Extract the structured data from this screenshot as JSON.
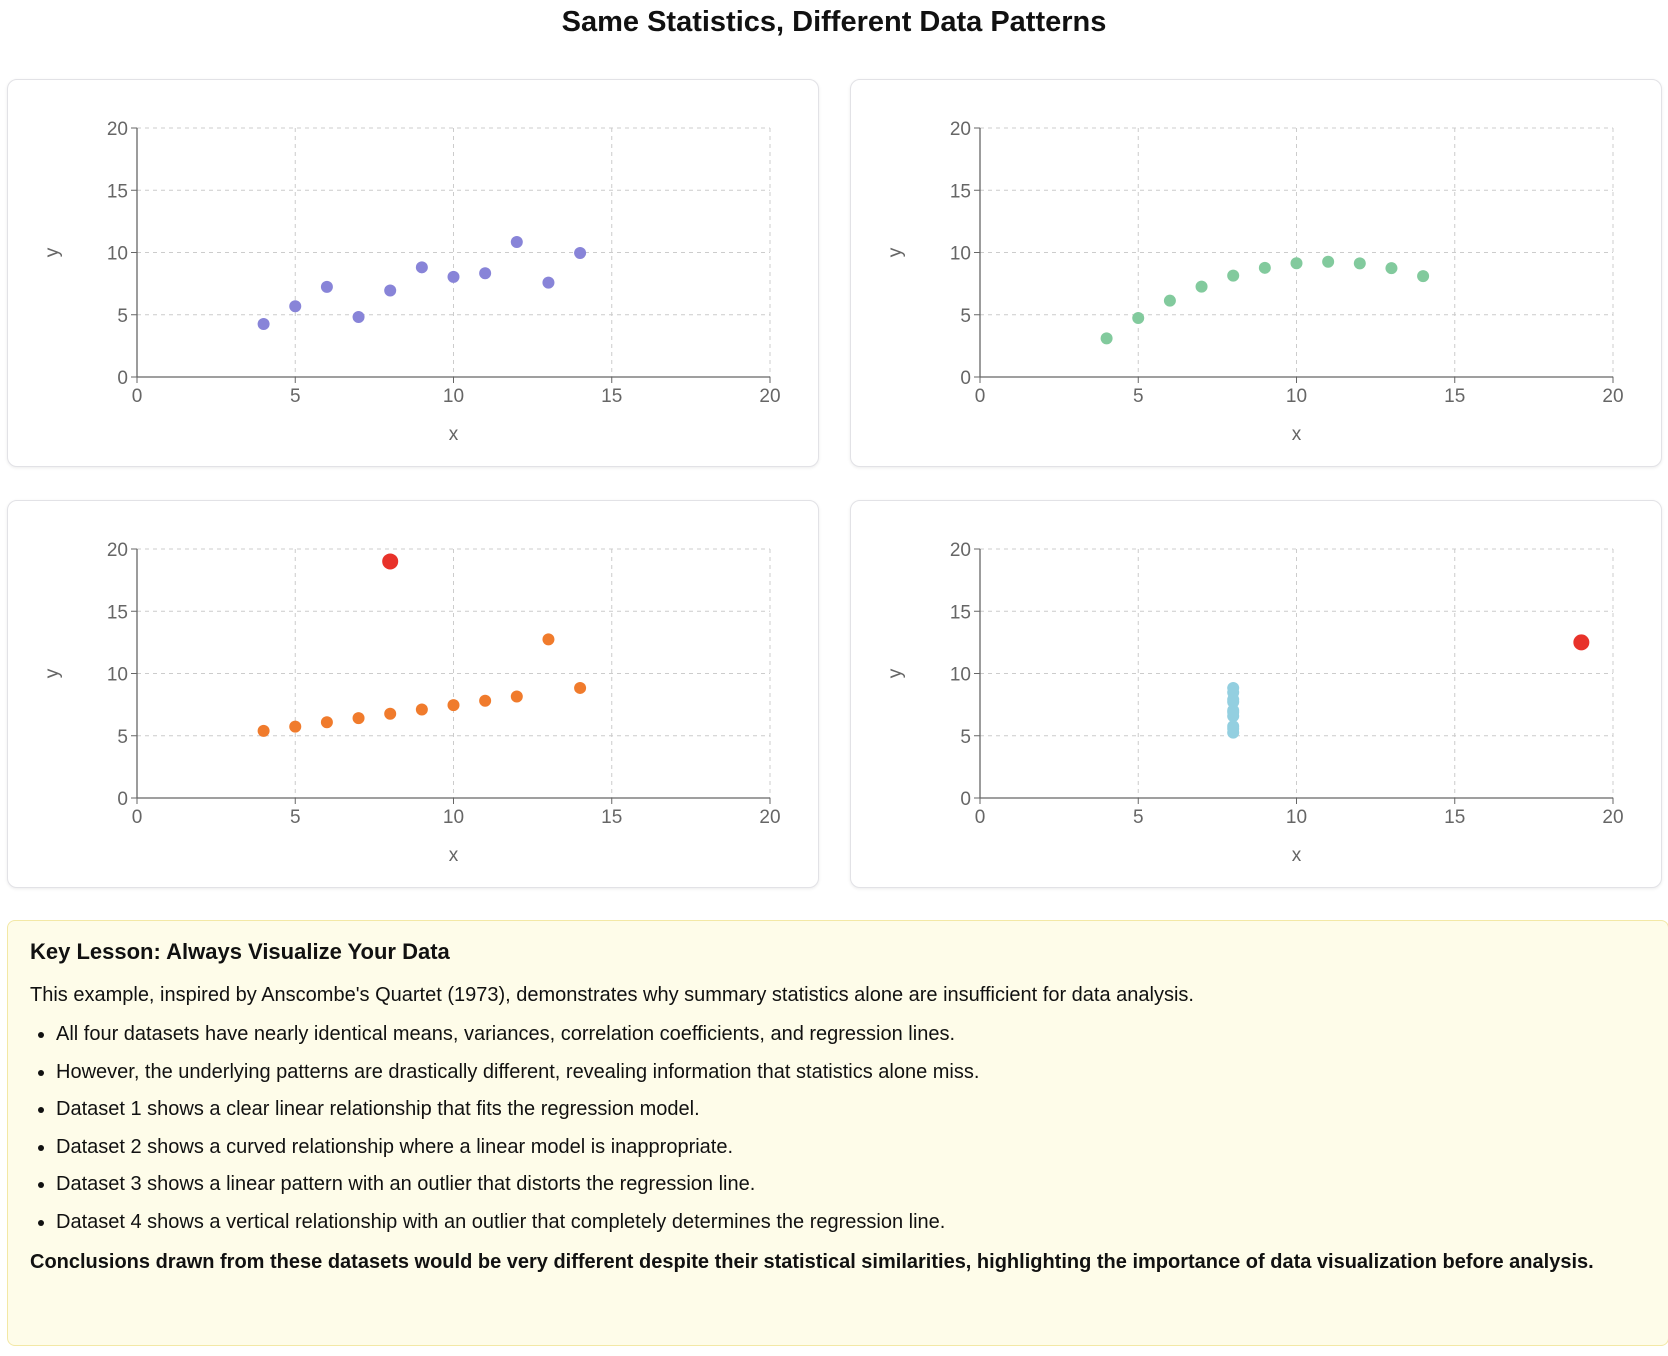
{
  "title": "Same Statistics, Different Data Patterns",
  "colors": {
    "dataset1": "#8884d8",
    "dataset2": "#82ca9d",
    "dataset3": "#f07b2c",
    "dataset4": "#93cfe0",
    "outlier": "#e8322a",
    "grid": "#cccccc",
    "axis": "#666666"
  },
  "chart_data": [
    {
      "type": "scatter",
      "xlabel": "x",
      "ylabel": "y",
      "xlim": [
        0,
        20
      ],
      "ylim": [
        0,
        20
      ],
      "xticks": [
        "0",
        "5",
        "10",
        "15",
        "20"
      ],
      "yticks": [
        "0",
        "5",
        "10",
        "15",
        "20"
      ],
      "grid": true,
      "color": "#8884d8",
      "points": [
        [
          10,
          8.04
        ],
        [
          8,
          6.95
        ],
        [
          13,
          7.58
        ],
        [
          9,
          8.81
        ],
        [
          11,
          8.33
        ],
        [
          14,
          9.96
        ],
        [
          6,
          7.24
        ],
        [
          4,
          4.26
        ],
        [
          12,
          10.84
        ],
        [
          7,
          4.82
        ],
        [
          5,
          5.68
        ]
      ],
      "highlight": []
    },
    {
      "type": "scatter",
      "xlabel": "x",
      "ylabel": "y",
      "xlim": [
        0,
        20
      ],
      "ylim": [
        0,
        20
      ],
      "xticks": [
        "0",
        "5",
        "10",
        "15",
        "20"
      ],
      "yticks": [
        "0",
        "5",
        "10",
        "15",
        "20"
      ],
      "grid": true,
      "color": "#82ca9d",
      "points": [
        [
          10,
          9.14
        ],
        [
          8,
          8.14
        ],
        [
          13,
          8.74
        ],
        [
          9,
          8.77
        ],
        [
          11,
          9.26
        ],
        [
          14,
          8.1
        ],
        [
          6,
          6.13
        ],
        [
          4,
          3.1
        ],
        [
          12,
          9.13
        ],
        [
          7,
          7.26
        ],
        [
          5,
          4.74
        ]
      ],
      "highlight": []
    },
    {
      "type": "scatter",
      "xlabel": "x",
      "ylabel": "y",
      "xlim": [
        0,
        20
      ],
      "ylim": [
        0,
        20
      ],
      "xticks": [
        "0",
        "5",
        "10",
        "15",
        "20"
      ],
      "yticks": [
        "0",
        "5",
        "10",
        "15",
        "20"
      ],
      "grid": true,
      "color": "#f07b2c",
      "points": [
        [
          10,
          7.46
        ],
        [
          8,
          6.77
        ],
        [
          13,
          12.74
        ],
        [
          9,
          7.11
        ],
        [
          11,
          7.81
        ],
        [
          14,
          8.84
        ],
        [
          6,
          6.08
        ],
        [
          4,
          5.39
        ],
        [
          12,
          8.15
        ],
        [
          7,
          6.42
        ],
        [
          5,
          5.73
        ]
      ],
      "highlight": [
        [
          8,
          19
        ]
      ]
    },
    {
      "type": "scatter",
      "xlabel": "x",
      "ylabel": "y",
      "xlim": [
        0,
        20
      ],
      "ylim": [
        0,
        20
      ],
      "xticks": [
        "0",
        "5",
        "10",
        "15",
        "20"
      ],
      "yticks": [
        "0",
        "5",
        "10",
        "15",
        "20"
      ],
      "grid": true,
      "color": "#93cfe0",
      "points": [
        [
          8,
          6.58
        ],
        [
          8,
          5.76
        ],
        [
          8,
          7.71
        ],
        [
          8,
          8.84
        ],
        [
          8,
          8.47
        ],
        [
          8,
          7.04
        ],
        [
          8,
          5.25
        ],
        [
          8,
          5.56
        ],
        [
          8,
          7.91
        ],
        [
          8,
          6.89
        ]
      ],
      "highlight": [
        [
          19,
          12.5
        ]
      ]
    }
  ],
  "lesson": {
    "heading": "Key Lesson: Always Visualize Your Data",
    "intro": "This example, inspired by Anscombe's Quartet (1973), demonstrates why summary statistics alone are insufficient for data analysis.",
    "bullets": [
      "All four datasets have nearly identical means, variances, correlation coefficients, and regression lines.",
      "However, the underlying patterns are drastically different, revealing information that statistics alone miss.",
      "Dataset 1 shows a clear linear relationship that fits the regression model.",
      "Dataset 2 shows a curved relationship where a linear model is inappropriate.",
      "Dataset 3 shows a linear pattern with an outlier that distorts the regression line.",
      "Dataset 4 shows a vertical relationship with an outlier that completely determines the regression line."
    ],
    "conclusion": "Conclusions drawn from these datasets would be very different despite their statistical similarities, highlighting the importance of data visualization before analysis."
  }
}
